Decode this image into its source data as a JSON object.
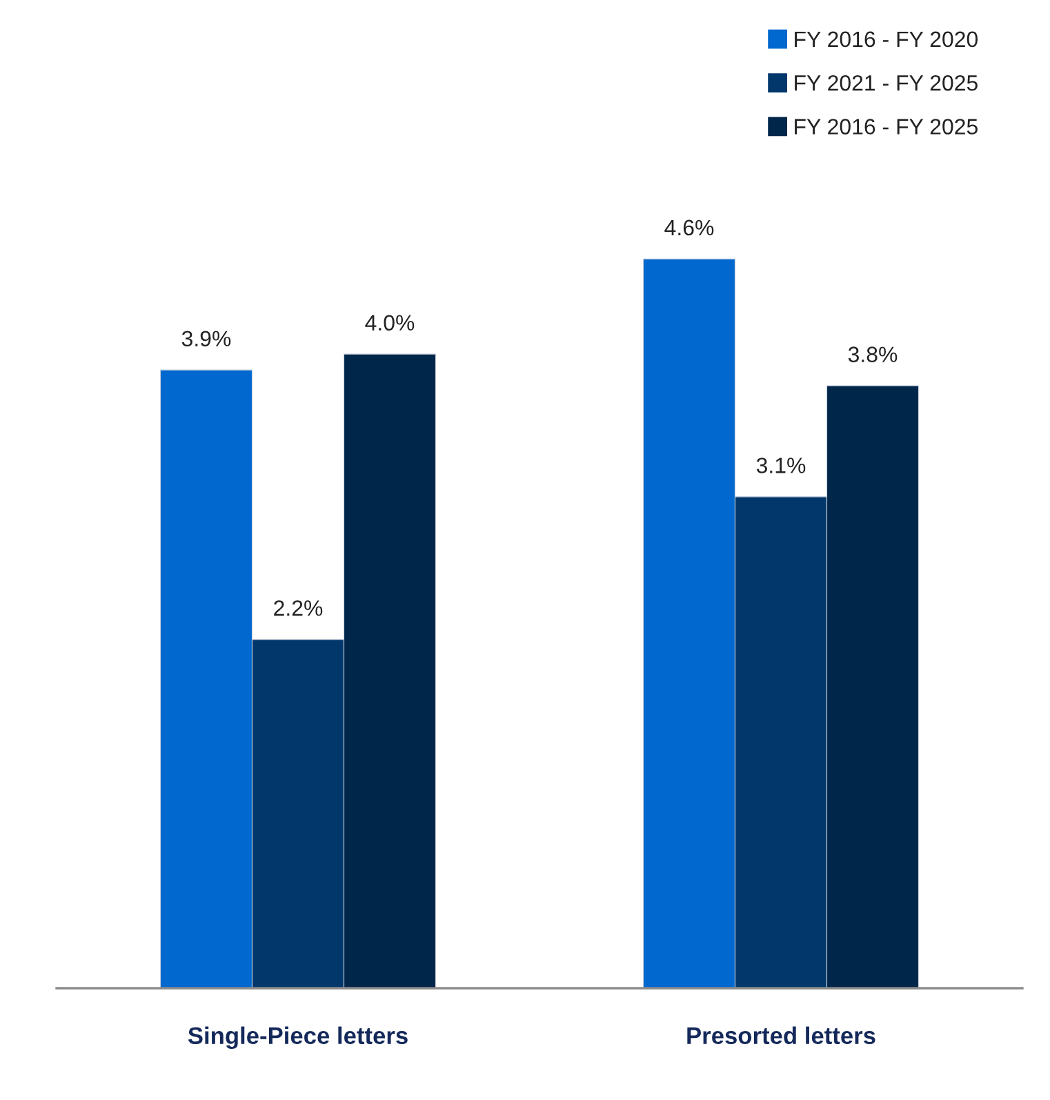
{
  "chart_data": {
    "type": "bar",
    "categories": [
      "Single-Piece letters",
      "Presorted letters"
    ],
    "series": [
      {
        "name": "FY 2016 - FY 2020",
        "color": "#0068cf",
        "values": [
          3.9,
          4.6
        ],
        "value_labels": [
          "3.9%",
          "4.6%"
        ]
      },
      {
        "name": "FY 2021 - FY 2025",
        "color": "#01376a",
        "values": [
          2.2,
          3.1
        ],
        "value_labels": [
          "2.2%",
          "3.1%"
        ]
      },
      {
        "name": "FY 2016 - FY 2025",
        "color": "#00264a",
        "values": [
          4.0,
          3.8
        ],
        "value_labels": [
          "4.0%",
          "3.8%"
        ]
      }
    ],
    "legend": "top right",
    "grid": false,
    "tick_labels": "x"
  }
}
